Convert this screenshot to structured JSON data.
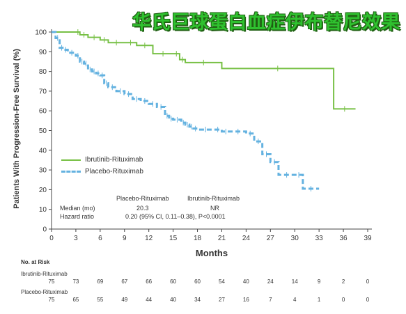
{
  "header": {
    "title": "华氏巨球蛋白血症伊布替尼效果"
  },
  "chart_data": {
    "type": "line",
    "subtype": "kaplan-meier step curve",
    "xlabel": "Months",
    "ylabel": "Patients With Progression-Free Survival (%)",
    "xlim": [
      0,
      39
    ],
    "ylim": [
      0,
      100
    ],
    "x_ticks": [
      0,
      3,
      6,
      9,
      12,
      15,
      18,
      21,
      24,
      27,
      30,
      33,
      36,
      39
    ],
    "y_ticks": [
      0,
      10,
      20,
      30,
      40,
      50,
      60,
      70,
      80,
      90,
      100
    ],
    "grid": false,
    "legend_position": "lower-left inside plot",
    "series": [
      {
        "name": "Ibrutinib-Rituximab",
        "color": "#77c045",
        "style": "solid",
        "x": [
          0,
          3,
          3.5,
          4.5,
          6,
          7,
          9,
          10.5,
          12.5,
          15,
          15.8,
          16.5,
          21,
          34.8,
          37.5
        ],
        "y": [
          100,
          100,
          98.6,
          97.3,
          96,
          94.6,
          94.6,
          93.2,
          89,
          89,
          86,
          84.5,
          81.5,
          61,
          61
        ]
      },
      {
        "name": "Placebo-Rituximab",
        "color": "#64b2e0",
        "style": "dashed",
        "x": [
          0,
          0.5,
          1,
          1.5,
          2,
          3,
          3.5,
          4,
          4.5,
          5,
          5.5,
          6,
          6.5,
          7,
          8,
          9,
          10,
          11,
          12,
          13,
          14,
          14.5,
          15,
          16,
          16.5,
          17,
          17.5,
          18,
          20,
          21,
          22,
          24,
          25,
          26,
          27,
          28,
          30,
          31,
          33
        ],
        "y": [
          100,
          97,
          92,
          91,
          89.5,
          88,
          85,
          84,
          81,
          80,
          79,
          78,
          74,
          72,
          70,
          68.5,
          66,
          65,
          63.5,
          62,
          57.5,
          56,
          55.5,
          54,
          53,
          52,
          51,
          50.5,
          50.5,
          49.5,
          49.5,
          48.5,
          44.5,
          38,
          34,
          27.5,
          27.5,
          20.5,
          20.5
        ]
      }
    ],
    "stats_table": {
      "columns": [
        "Placebo-Rituximab",
        "Ibrutinib-Rituximab"
      ],
      "rows": [
        {
          "label": "Median (mo)",
          "values": [
            "20.3",
            "NR"
          ]
        },
        {
          "label": "Hazard ratio",
          "values": [
            "0.20 (95% CI, 0.11–0.38), P<0.0001"
          ]
        }
      ]
    },
    "risk_table": {
      "heading": "No. at Risk",
      "time_points": [
        0,
        3,
        6,
        9,
        12,
        15,
        18,
        21,
        24,
        27,
        30,
        33,
        36,
        39
      ],
      "rows": [
        {
          "name": "Ibrutinib-Rituximab",
          "values": [
            75,
            73,
            69,
            67,
            66,
            60,
            60,
            54,
            40,
            24,
            14,
            9,
            2,
            0
          ]
        },
        {
          "name": "Placebo-Rituximab",
          "values": [
            75,
            65,
            55,
            49,
            44,
            40,
            34,
            27,
            16,
            7,
            4,
            1,
            0,
            0
          ]
        }
      ]
    }
  }
}
